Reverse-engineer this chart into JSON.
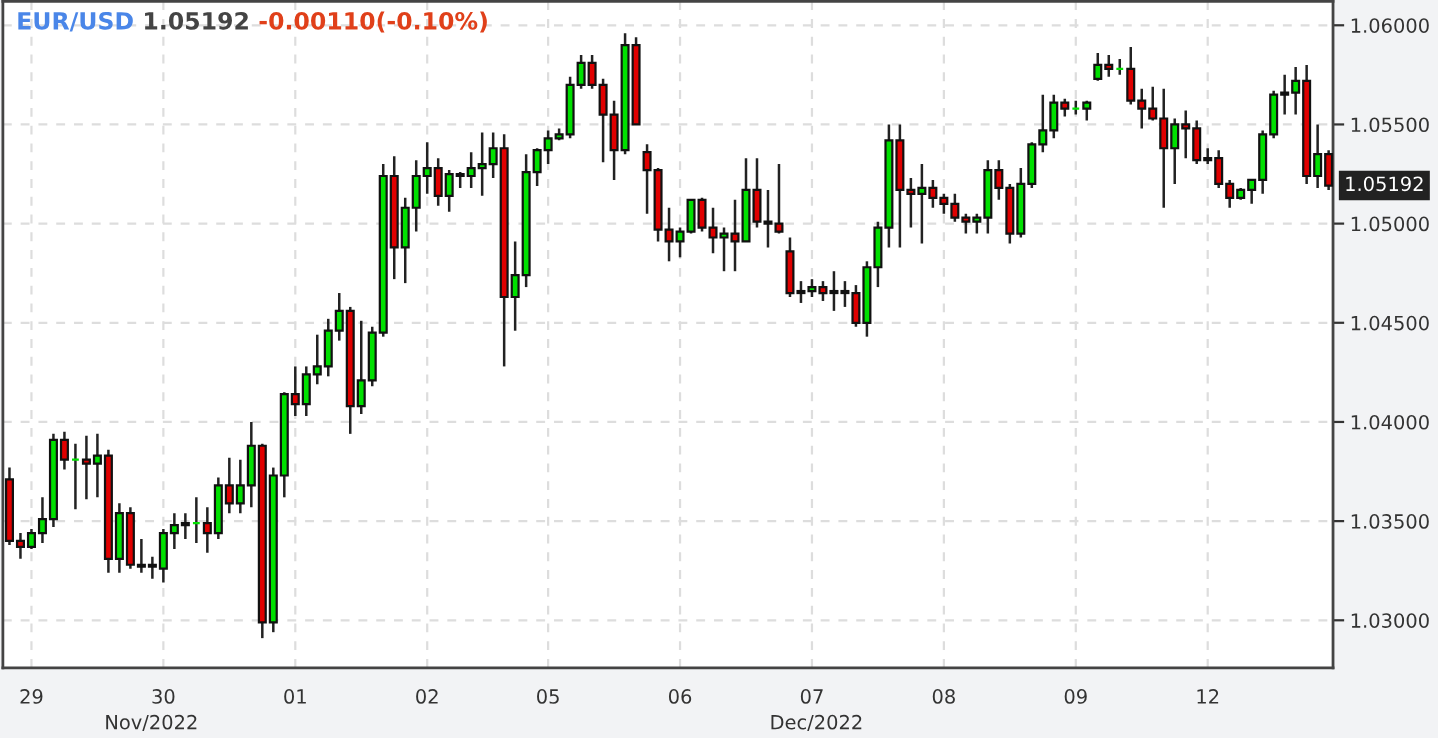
{
  "chart_data": {
    "type": "candlestick",
    "title": "EUR/USD",
    "subtitle": "1.05192",
    "annotations": [
      "-0.00110(-0.10%)",
      "Nov/2022",
      "Dec/2022",
      "1.05192"
    ],
    "categories": [
      null,
      null,
      "29",
      null,
      null,
      null,
      null,
      null,
      null,
      null,
      null,
      null,
      null,
      null,
      "30",
      null,
      null,
      null,
      null,
      null,
      null,
      null,
      null,
      null,
      null,
      null,
      "01",
      null,
      null,
      null,
      null,
      null,
      null,
      null,
      null,
      null,
      null,
      null,
      "02",
      null,
      null,
      null,
      null,
      null,
      null,
      null,
      null,
      null,
      null,
      "05",
      null,
      null,
      null,
      null,
      null,
      null,
      null,
      null,
      null,
      null,
      null,
      "06",
      null,
      null,
      null,
      null,
      null,
      null,
      null,
      null,
      null,
      null,
      null,
      "07",
      null,
      null,
      null,
      null,
      null,
      null,
      null,
      null,
      null,
      null,
      null,
      "08",
      null,
      null,
      null,
      null,
      null,
      null,
      null,
      null,
      null,
      null,
      null,
      "09",
      null,
      null,
      null,
      null,
      null,
      null,
      null,
      null,
      null,
      null,
      null,
      "12",
      null,
      null,
      null,
      null,
      null,
      null,
      null,
      null,
      null,
      null,
      null
    ],
    "ohlc": [
      [
        1.0371,
        1.0377,
        1.0338,
        1.034
      ],
      [
        1.034,
        1.0344,
        1.0331,
        1.0337
      ],
      [
        1.0337,
        1.0346,
        1.0336,
        1.0344
      ],
      [
        1.0344,
        1.0362,
        1.0339,
        1.0351
      ],
      [
        1.0351,
        1.0394,
        1.0347,
        1.0391
      ],
      [
        1.0391,
        1.0395,
        1.0376,
        1.0381
      ],
      [
        1.0381,
        1.0389,
        1.0356,
        1.0381
      ],
      [
        1.0381,
        1.0393,
        1.0361,
        1.0379
      ],
      [
        1.0379,
        1.0394,
        1.0362,
        1.0383
      ],
      [
        1.0383,
        1.0386,
        1.0324,
        1.0331
      ],
      [
        1.0331,
        1.0359,
        1.0324,
        1.0354
      ],
      [
        1.0354,
        1.0357,
        1.0326,
        1.0328
      ],
      [
        1.0328,
        1.0341,
        1.0324,
        1.0327
      ],
      [
        1.0327,
        1.0332,
        1.0321,
        1.0328
      ],
      [
        1.0326,
        1.0346,
        1.0319,
        1.0344
      ],
      [
        1.0344,
        1.0354,
        1.0336,
        1.0348
      ],
      [
        1.0348,
        1.0354,
        1.0341,
        1.0349
      ],
      [
        1.0349,
        1.0362,
        1.0339,
        1.0349
      ],
      [
        1.0349,
        1.0357,
        1.0334,
        1.0344
      ],
      [
        1.0344,
        1.0372,
        1.0341,
        1.0368
      ],
      [
        1.0368,
        1.0382,
        1.0354,
        1.0359
      ],
      [
        1.0359,
        1.0381,
        1.0354,
        1.0368
      ],
      [
        1.0368,
        1.04,
        1.0357,
        1.0388
      ],
      [
        1.0388,
        1.0389,
        1.0291,
        1.0299
      ],
      [
        1.0299,
        1.0377,
        1.0294,
        1.0373
      ],
      [
        1.0373,
        1.0415,
        1.0362,
        1.0414
      ],
      [
        1.0414,
        1.0428,
        1.0403,
        1.0409
      ],
      [
        1.0409,
        1.0428,
        1.0403,
        1.0424
      ],
      [
        1.0424,
        1.0444,
        1.0419,
        1.0428
      ],
      [
        1.0428,
        1.0452,
        1.0423,
        1.0446
      ],
      [
        1.0446,
        1.0465,
        1.0441,
        1.0456
      ],
      [
        1.0456,
        1.0458,
        1.0394,
        1.0408
      ],
      [
        1.0408,
        1.0451,
        1.0404,
        1.0421
      ],
      [
        1.0421,
        1.0448,
        1.0418,
        1.0445
      ],
      [
        1.0445,
        1.053,
        1.0443,
        1.0524
      ],
      [
        1.0524,
        1.0534,
        1.0472,
        1.0488
      ],
      [
        1.0488,
        1.0513,
        1.047,
        1.0508
      ],
      [
        1.0508,
        1.0532,
        1.0496,
        1.0524
      ],
      [
        1.0524,
        1.0541,
        1.0515,
        1.0528
      ],
      [
        1.0528,
        1.0533,
        1.0509,
        1.0514
      ],
      [
        1.0514,
        1.0527,
        1.0506,
        1.0525
      ],
      [
        1.0525,
        1.0526,
        1.0518,
        1.0524
      ],
      [
        1.0524,
        1.0536,
        1.0518,
        1.0528
      ],
      [
        1.0528,
        1.0546,
        1.0514,
        1.053
      ],
      [
        1.053,
        1.0546,
        1.0523,
        1.0538
      ],
      [
        1.0538,
        1.0545,
        1.0428,
        1.0463
      ],
      [
        1.0463,
        1.0491,
        1.0446,
        1.0474
      ],
      [
        1.0474,
        1.0535,
        1.0468,
        1.0526
      ],
      [
        1.0526,
        1.0538,
        1.0519,
        1.0537
      ],
      [
        1.0537,
        1.0547,
        1.053,
        1.0543
      ],
      [
        1.0543,
        1.0548,
        1.0542,
        1.0545
      ],
      [
        1.0545,
        1.0574,
        1.0543,
        1.057
      ],
      [
        1.057,
        1.0585,
        1.0568,
        1.0581
      ],
      [
        1.0581,
        1.0585,
        1.0568,
        1.057
      ],
      [
        1.057,
        1.0573,
        1.0531,
        1.0555
      ],
      [
        1.0555,
        1.0562,
        1.0522,
        1.0537
      ],
      [
        1.0537,
        1.0596,
        1.0535,
        1.059
      ],
      [
        1.059,
        1.0594,
        1.055,
        1.055
      ],
      [
        1.0536,
        1.054,
        1.0505,
        1.0527
      ],
      [
        1.0527,
        1.0528,
        1.0491,
        1.0497
      ],
      [
        1.0497,
        1.0508,
        1.0481,
        1.0491
      ],
      [
        1.0491,
        1.0498,
        1.0483,
        1.0496
      ],
      [
        1.0496,
        1.0512,
        1.0495,
        1.0512
      ],
      [
        1.0512,
        1.0513,
        1.0496,
        1.0498
      ],
      [
        1.0498,
        1.0508,
        1.0485,
        1.0493
      ],
      [
        1.0493,
        1.0498,
        1.0476,
        1.0495
      ],
      [
        1.0495,
        1.0512,
        1.0476,
        1.0491
      ],
      [
        1.0491,
        1.0533,
        1.0491,
        1.0517
      ],
      [
        1.0517,
        1.0533,
        1.0498,
        1.0501
      ],
      [
        1.0501,
        1.0517,
        1.0488,
        1.05
      ],
      [
        1.05,
        1.053,
        1.0495,
        1.0496
      ],
      [
        1.0486,
        1.0493,
        1.0463,
        1.0465
      ],
      [
        1.0465,
        1.0471,
        1.046,
        1.0466
      ],
      [
        1.0466,
        1.0472,
        1.0463,
        1.0468
      ],
      [
        1.0468,
        1.0471,
        1.0461,
        1.0465
      ],
      [
        1.0465,
        1.0476,
        1.0456,
        1.0466
      ],
      [
        1.0466,
        1.0471,
        1.0458,
        1.0465
      ],
      [
        1.0465,
        1.0469,
        1.0448,
        1.045
      ],
      [
        1.045,
        1.0481,
        1.0443,
        1.0478
      ],
      [
        1.0478,
        1.0501,
        1.0468,
        1.0498
      ],
      [
        1.0498,
        1.055,
        1.0488,
        1.0542
      ],
      [
        1.0542,
        1.055,
        1.0488,
        1.0517
      ],
      [
        1.0517,
        1.0523,
        1.0498,
        1.0515
      ],
      [
        1.0515,
        1.053,
        1.049,
        1.0518
      ],
      [
        1.0518,
        1.0522,
        1.0508,
        1.0513
      ],
      [
        1.0513,
        1.0515,
        1.0505,
        1.051
      ],
      [
        1.051,
        1.0515,
        1.0501,
        1.0503
      ],
      [
        1.0503,
        1.0505,
        1.0495,
        1.0501
      ],
      [
        1.0501,
        1.0505,
        1.0495,
        1.0503
      ],
      [
        1.0503,
        1.0532,
        1.0495,
        1.0527
      ],
      [
        1.0527,
        1.0532,
        1.0512,
        1.0518
      ],
      [
        1.0518,
        1.052,
        1.049,
        1.0495
      ],
      [
        1.0495,
        1.0528,
        1.0493,
        1.052
      ],
      [
        1.052,
        1.0541,
        1.0518,
        1.054
      ],
      [
        1.054,
        1.0565,
        1.0536,
        1.0547
      ],
      [
        1.0547,
        1.0565,
        1.0543,
        1.0561
      ],
      [
        1.0561,
        1.0563,
        1.0554,
        1.0558
      ],
      [
        1.0558,
        1.0562,
        1.0555,
        1.0558
      ],
      [
        1.0558,
        1.0562,
        1.0552,
        1.0561
      ],
      [
        1.0573,
        1.0586,
        1.0572,
        1.058
      ],
      [
        1.058,
        1.0585,
        1.0574,
        1.0578
      ],
      [
        1.0578,
        1.0583,
        1.0575,
        1.0578
      ],
      [
        1.0578,
        1.0589,
        1.056,
        1.0562
      ],
      [
        1.0562,
        1.0568,
        1.0548,
        1.0558
      ],
      [
        1.0558,
        1.0569,
        1.0552,
        1.0553
      ],
      [
        1.0553,
        1.0568,
        1.0508,
        1.0538
      ],
      [
        1.0538,
        1.0553,
        1.052,
        1.055
      ],
      [
        1.055,
        1.0557,
        1.0533,
        1.0548
      ],
      [
        1.0548,
        1.0552,
        1.053,
        1.0532
      ],
      [
        1.0532,
        1.0538,
        1.053,
        1.0533
      ],
      [
        1.0533,
        1.0537,
        1.0518,
        1.052
      ],
      [
        1.052,
        1.0522,
        1.0508,
        1.0513
      ],
      [
        1.0513,
        1.0518,
        1.0512,
        1.0517
      ],
      [
        1.0517,
        1.0522,
        1.051,
        1.0522
      ],
      [
        1.0522,
        1.0547,
        1.0515,
        1.0545
      ],
      [
        1.0545,
        1.0567,
        1.0543,
        1.0565
      ],
      [
        1.0565,
        1.0575,
        1.0555,
        1.0566
      ],
      [
        1.0566,
        1.0579,
        1.0555,
        1.0572
      ],
      [
        1.0572,
        1.058,
        1.052,
        1.0524
      ],
      [
        1.0524,
        1.055,
        1.0518,
        1.0535
      ],
      [
        1.0535,
        1.0537,
        1.0517,
        1.05192
      ]
    ],
    "colors": [
      "#e00000",
      "#e00000",
      "#00e000",
      "#00e000",
      "#00e000",
      "#e00000",
      "#00e000",
      "#e00000",
      "#00e000",
      "#e00000",
      "#00e000",
      "#e00000",
      "#e00000",
      "#00e000",
      "#00e000",
      "#00e000",
      "#00e000",
      "#00e000",
      "#e00000",
      "#00e000",
      "#e00000",
      "#00e000",
      "#00e000",
      "#e00000",
      "#00e000",
      "#00e000",
      "#e00000",
      "#00e000",
      "#00e000",
      "#00e000",
      "#00e000",
      "#e00000",
      "#00e000",
      "#00e000",
      "#00e000",
      "#e00000",
      "#00e000",
      "#00e000",
      "#00e000",
      "#e00000",
      "#00e000",
      "#e00000",
      "#00e000",
      "#00e000",
      "#00e000",
      "#e00000",
      "#00e000",
      "#00e000",
      "#00e000",
      "#00e000",
      "#00e000",
      "#00e000",
      "#00e000",
      "#e00000",
      "#e00000",
      "#e00000",
      "#00e000",
      "#e00000",
      "#e00000",
      "#e00000",
      "#e00000",
      "#00e000",
      "#00e000",
      "#e00000",
      "#e00000",
      "#00e000",
      "#e00000",
      "#00e000",
      "#e00000",
      "#e00000",
      "#e00000",
      "#e00000",
      "#00e000",
      "#00e000",
      "#e00000",
      "#00e000",
      "#e00000",
      "#e00000",
      "#00e000",
      "#00e000",
      "#00e000",
      "#e00000",
      "#e00000",
      "#00e000",
      "#e00000",
      "#e00000",
      "#e00000",
      "#e00000",
      "#00e000",
      "#00e000",
      "#e00000",
      "#e00000",
      "#00e000",
      "#00e000",
      "#00e000",
      "#00e000",
      "#e00000",
      "#00e000",
      "#00e000",
      "#00e000",
      "#e00000",
      "#00e000",
      "#e00000",
      "#e00000",
      "#e00000",
      "#e00000",
      "#00e000",
      "#e00000",
      "#e00000",
      "#00e000",
      "#e00000",
      "#e00000",
      "#00e000",
      "#00e000",
      "#00e000",
      "#00e000",
      "#00e000",
      "#00e000",
      "#e00000",
      "#00e000",
      "#e00000"
    ],
    "ylim": [
      1.0276,
      1.0612
    ],
    "yticks": [
      {
        "value": 1.03,
        "label": "1.03000"
      },
      {
        "value": 1.035,
        "label": "1.03500"
      },
      {
        "value": 1.04,
        "label": "1.04000"
      },
      {
        "value": 1.045,
        "label": "1.04500"
      },
      {
        "value": 1.05,
        "label": "1.05000"
      },
      {
        "value": 1.055,
        "label": "1.05500"
      },
      {
        "value": 1.06,
        "label": "1.06000"
      }
    ],
    "grid": true
  }
}
